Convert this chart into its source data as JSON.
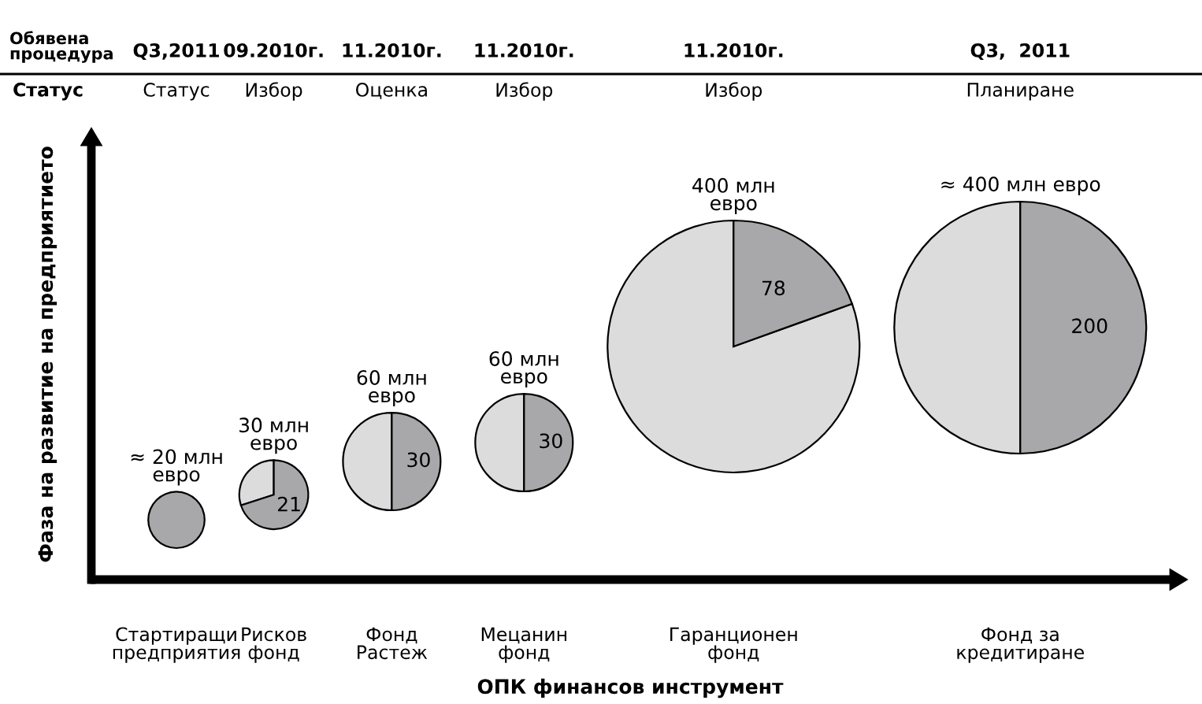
{
  "chart_data": {
    "type": "other",
    "xlabel": "ОПК финансов инструмент",
    "ylabel": "Фаза на развитие на предприятието",
    "categories": [
      "Стартиращи\nпредприятия",
      "Рисков\nфонд",
      "Фонд\nРастеж",
      "Мецанин\nфонд",
      "Гаранционен\nфонд",
      "Фонд за\nкредитиране"
    ],
    "series": [
      {
        "color": "#dcdcdc",
        "values": [
          20,
          30,
          60,
          60,
          400,
          400
        ],
        "value_labels": [
          "≈ 20 млн\nевро",
          "30 млн\nевро",
          "60 млн\nевро",
          "60 млн\nевро",
          "400 млн\nевро",
          "≈ 400 млн евро"
        ]
      },
      {
        "color": "#a8a8aa",
        "values": [
          null,
          21,
          30,
          30,
          78,
          200
        ],
        "value_labels": [
          null,
          "21",
          "30",
          "30",
          "78",
          "200"
        ]
      }
    ],
    "annotations": [
      "Обявена\nпроцедура",
      "Статус",
      "Q3,2011",
      "09.2010г.",
      "11.2010г.",
      "11.2010г.",
      "11.2010г.",
      "Q3,  2011",
      "Статус",
      "Избор",
      "Оценка",
      "Избор",
      "Избор",
      "Планиране"
    ]
  }
}
